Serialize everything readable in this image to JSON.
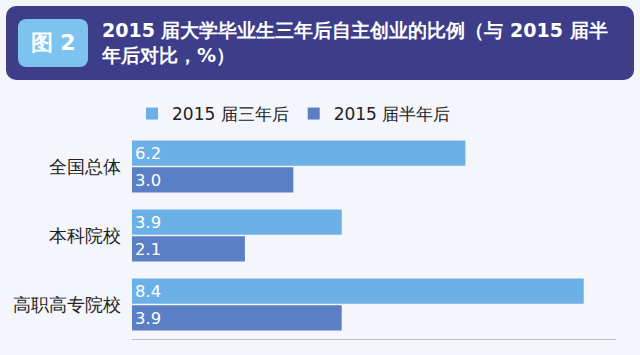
{
  "chart_data": {
    "type": "bar",
    "orientation": "horizontal",
    "title": "2015 届大学毕业生三年后自主创业的比例（与 2015 届半年后对比，%）",
    "figure_label": "图 2",
    "categories": [
      "全国总体",
      "本科院校",
      "高职高专院校"
    ],
    "series": [
      {
        "name": "2015 届三年后",
        "color": "#6cb0e8",
        "values": [
          6.2,
          3.9,
          8.4
        ],
        "value_labels": [
          "6.2",
          "3.9",
          "8.4"
        ]
      },
      {
        "name": "2015 届半年后",
        "color": "#5a7fc6",
        "values": [
          3.0,
          2.1,
          3.9
        ],
        "value_labels": [
          "3.0",
          "2.1",
          "3.9"
        ]
      }
    ],
    "xlim": [
      0,
      9
    ],
    "data_labels": true,
    "tick_labels": "y",
    "grid": false,
    "legend": "top"
  }
}
